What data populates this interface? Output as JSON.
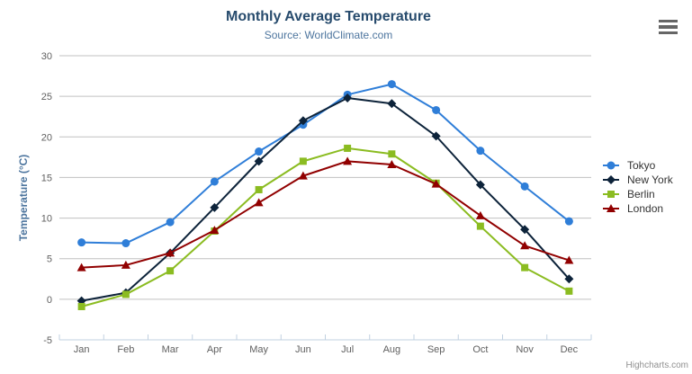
{
  "chart_data": {
    "type": "line",
    "title": "Monthly Average Temperature",
    "subtitle": "Source: WorldClimate.com",
    "categories": [
      "Jan",
      "Feb",
      "Mar",
      "Apr",
      "May",
      "Jun",
      "Jul",
      "Aug",
      "Sep",
      "Oct",
      "Nov",
      "Dec"
    ],
    "series": [
      {
        "name": "Tokyo",
        "color": "#2f7ed8",
        "marker": "circle",
        "values": [
          7.0,
          6.9,
          9.5,
          14.5,
          18.2,
          21.5,
          25.2,
          26.5,
          23.3,
          18.3,
          13.9,
          9.6
        ]
      },
      {
        "name": "New York",
        "color": "#0d233a",
        "marker": "diamond",
        "values": [
          -0.2,
          0.8,
          5.7,
          11.3,
          17.0,
          22.0,
          24.8,
          24.1,
          20.1,
          14.1,
          8.6,
          2.5
        ]
      },
      {
        "name": "Berlin",
        "color": "#8bbc21",
        "marker": "square",
        "values": [
          -0.9,
          0.6,
          3.5,
          8.4,
          13.5,
          17.0,
          18.6,
          17.9,
          14.3,
          9.0,
          3.9,
          1.0
        ]
      },
      {
        "name": "London",
        "color": "#910000",
        "marker": "triangle",
        "values": [
          3.9,
          4.2,
          5.7,
          8.5,
          11.9,
          15.2,
          17.0,
          16.6,
          14.2,
          10.3,
          6.6,
          4.8
        ]
      }
    ],
    "xlabel": "",
    "ylabel": "Temperature (°C)",
    "ylim": [
      -5,
      30
    ],
    "yticks": [
      -5,
      0,
      5,
      10,
      15,
      20,
      25,
      30
    ],
    "grid": true,
    "legend_position": "right"
  },
  "credit": "Highcharts.com",
  "icons": {
    "context_menu": "hamburger-icon"
  },
  "colors": {
    "title": "#274b6d",
    "subtitle": "#4d759e",
    "axis_title": "#4d759e",
    "axis_label": "#606060",
    "gridline": "#c0c0c0",
    "xaxis_line": "#c0d0e0",
    "legend_text": "#333333",
    "credit": "#909090",
    "menu_icon": "#666666",
    "background": "#ffffff"
  }
}
